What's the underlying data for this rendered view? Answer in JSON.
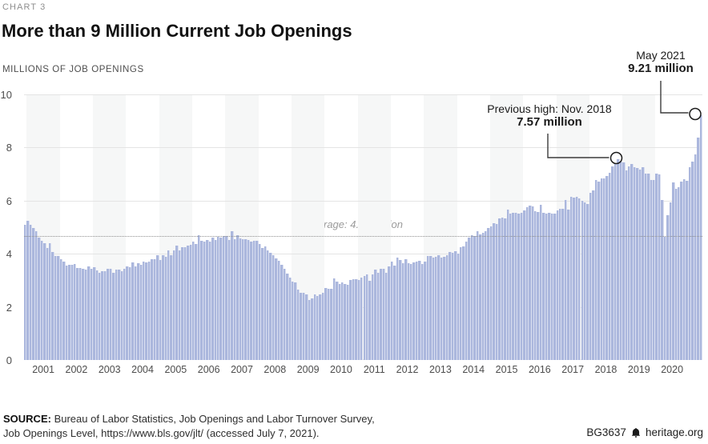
{
  "header": {
    "kicker": "CHART 3",
    "title": "More than 9 Million Current Job Openings",
    "units": "MILLIONS OF JOB OPENINGS"
  },
  "annotations": {
    "may2021": {
      "line1": "May 2021",
      "line2": "9.21 million"
    },
    "prev_high": {
      "line1": "Previous high: Nov. 2018",
      "line2": "7.57 million"
    }
  },
  "average": {
    "label": "Average: 4.66 million",
    "value": 4.66
  },
  "footer": {
    "source_prefix": "SOURCE:",
    "source_line1": "Bureau of Labor Statistics, Job Openings and Labor Turnover Survey,",
    "source_line2": "Job Openings Level, https://www.bls.gov/jlt/ (accessed July 7, 2021).",
    "code": "BG3637",
    "site": "heritage.org"
  },
  "chart_data": {
    "type": "bar",
    "title": "More than 9 Million Current Job Openings",
    "ylabel": "MILLIONS OF JOB OPENINGS",
    "xlabel": "",
    "ylim": [
      0,
      10
    ],
    "yticks": [
      0,
      2,
      4,
      6,
      8,
      10
    ],
    "grid": "horizontal",
    "start_month": "2000-12",
    "end_month": "2021-05",
    "year_labels": [
      "2001",
      "2002",
      "2003",
      "2004",
      "2005",
      "2006",
      "2007",
      "2008",
      "2009",
      "2010",
      "2011",
      "2012",
      "2013",
      "2014",
      "2015",
      "2016",
      "2017",
      "2018",
      "2019",
      "2020"
    ],
    "average_value": 4.66,
    "highlight_points": [
      {
        "label": "Previous high: Nov. 2018",
        "month": "2018-11",
        "value": 7.57
      },
      {
        "label": "May 2021",
        "month": "2021-05",
        "value": 9.21
      }
    ],
    "values": [
      5.09,
      5.23,
      5.1,
      4.97,
      4.84,
      4.62,
      4.48,
      4.4,
      4.21,
      4.39,
      4.06,
      3.93,
      3.91,
      3.79,
      3.7,
      3.55,
      3.59,
      3.58,
      3.62,
      3.47,
      3.45,
      3.44,
      3.41,
      3.53,
      3.43,
      3.48,
      3.38,
      3.28,
      3.33,
      3.35,
      3.42,
      3.43,
      3.27,
      3.4,
      3.39,
      3.35,
      3.42,
      3.52,
      3.5,
      3.67,
      3.52,
      3.65,
      3.58,
      3.71,
      3.67,
      3.72,
      3.79,
      3.8,
      3.95,
      3.78,
      3.95,
      3.89,
      4.12,
      3.95,
      4.12,
      4.3,
      4.14,
      4.26,
      4.26,
      4.31,
      4.35,
      4.45,
      4.38,
      4.7,
      4.5,
      4.46,
      4.53,
      4.45,
      4.6,
      4.52,
      4.65,
      4.62,
      4.66,
      4.67,
      4.53,
      4.85,
      4.54,
      4.7,
      4.59,
      4.55,
      4.54,
      4.53,
      4.47,
      4.5,
      4.48,
      4.37,
      4.23,
      4.27,
      4.14,
      4.05,
      3.94,
      3.82,
      3.74,
      3.57,
      3.42,
      3.25,
      3.11,
      2.94,
      2.91,
      2.64,
      2.53,
      2.54,
      2.46,
      2.25,
      2.33,
      2.46,
      2.41,
      2.48,
      2.53,
      2.7,
      2.67,
      2.69,
      3.07,
      2.94,
      2.85,
      2.93,
      2.85,
      2.82,
      3.02,
      3.03,
      3.04,
      3.0,
      3.11,
      3.17,
      3.23,
      2.98,
      3.22,
      3.41,
      3.27,
      3.42,
      3.42,
      3.29,
      3.51,
      3.72,
      3.54,
      3.85,
      3.76,
      3.64,
      3.79,
      3.64,
      3.62,
      3.67,
      3.71,
      3.73,
      3.62,
      3.71,
      3.92,
      3.93,
      3.87,
      3.89,
      3.96,
      3.87,
      3.9,
      3.96,
      4.06,
      4.04,
      4.09,
      4.0,
      4.25,
      4.28,
      4.47,
      4.61,
      4.71,
      4.68,
      4.85,
      4.72,
      4.8,
      4.86,
      4.97,
      5.03,
      5.14,
      5.11,
      5.33,
      5.36,
      5.33,
      5.67,
      5.51,
      5.53,
      5.55,
      5.51,
      5.54,
      5.62,
      5.76,
      5.8,
      5.79,
      5.59,
      5.57,
      5.83,
      5.53,
      5.52,
      5.54,
      5.51,
      5.5,
      5.62,
      5.68,
      5.7,
      6.02,
      5.66,
      6.16,
      6.12,
      6.14,
      6.09,
      5.98,
      5.93,
      5.88,
      6.31,
      6.38,
      6.78,
      6.72,
      6.85,
      6.85,
      6.94,
      7.05,
      7.29,
      7.37,
      7.57,
      7.48,
      7.45,
      7.14,
      7.3,
      7.37,
      7.25,
      7.23,
      7.16,
      7.25,
      7.02,
      7.01,
      6.79,
      6.79,
      7.01,
      7.0,
      6.01,
      4.63,
      5.46,
      5.94,
      6.7,
      6.44,
      6.52,
      6.72,
      6.8,
      6.75,
      7.26,
      7.46,
      7.74,
      8.36,
      9.21
    ],
    "colors": {
      "bar": "#abb7dd",
      "band_shade": "#f6f7f7",
      "gridline": "#e4e4e4",
      "average_line": "#8f8f8f",
      "annotation": "#1a1a1a"
    },
    "legend": null
  }
}
